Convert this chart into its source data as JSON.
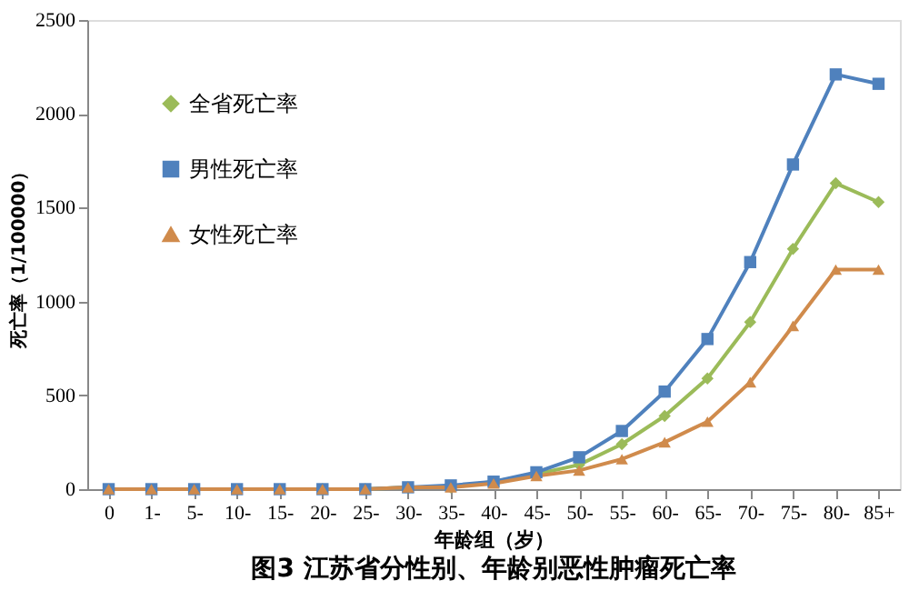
{
  "chart_data": {
    "type": "line",
    "title": "图3 江苏省分性别、年龄别恶性肿瘤死亡率",
    "xlabel": "年龄组（岁）",
    "ylabel": "死亡率（1/100000）",
    "categories": [
      "0",
      "1-",
      "5-",
      "10-",
      "15-",
      "20-",
      "25-",
      "30-",
      "35-",
      "40-",
      "45-",
      "50-",
      "55-",
      "60-",
      "65-",
      "70-",
      "75-",
      "80-",
      "85+"
    ],
    "series": [
      {
        "name": "全省死亡率",
        "color": "#9bbb59",
        "marker": "diamond",
        "values": [
          null,
          null,
          null,
          null,
          null,
          0,
          0,
          10,
          10,
          40,
          80,
          130,
          240,
          390,
          590,
          890,
          1280,
          1630,
          1530
        ]
      },
      {
        "name": "男性死亡率",
        "color": "#4f81bd",
        "marker": "square",
        "values": [
          0,
          0,
          0,
          0,
          0,
          0,
          0,
          10,
          20,
          40,
          90,
          170,
          310,
          520,
          800,
          1210,
          1730,
          2210,
          2160
        ]
      },
      {
        "name": "女性死亡率",
        "color": "#d08b4c",
        "marker": "triangle",
        "values": [
          0,
          0,
          0,
          0,
          0,
          0,
          0,
          10,
          10,
          30,
          70,
          100,
          160,
          250,
          360,
          570,
          870,
          1170,
          1170
        ]
      }
    ],
    "ylim": [
      0,
      2500
    ],
    "yticks": [
      0,
      500,
      1000,
      1500,
      2000,
      2500
    ],
    "grid": false,
    "legend": "top left",
    "line_style": "solid"
  }
}
